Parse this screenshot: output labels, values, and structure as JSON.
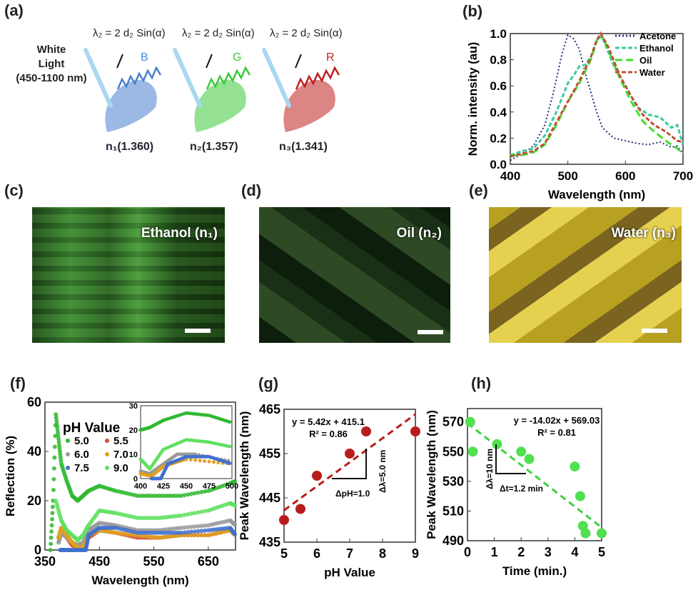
{
  "panel_labels": {
    "a": "(a)",
    "b": "(b)",
    "c": "(c)",
    "d": "(d)",
    "e": "(e)",
    "f": "(f)",
    "g": "(g)",
    "h": "(h)"
  },
  "panel_a": {
    "light_label": [
      "White",
      "Light",
      "(450-1100 nm)"
    ],
    "equation": "λ₂ = 2 d₂ Sin(α)",
    "wings": [
      {
        "color_letter": "B",
        "index": "n₁(1.360)",
        "color": "#4a7fd0"
      },
      {
        "color_letter": "G",
        "index": "n₂(1.357)",
        "color": "#3cc83c"
      },
      {
        "color_letter": "R",
        "index": "n₃(1.341)",
        "color": "#c02020"
      }
    ]
  },
  "photos": {
    "c": {
      "label": "Ethanol (n₁)"
    },
    "d": {
      "label": "Oil (n₂)"
    },
    "e": {
      "label": "Water (n₃)"
    }
  },
  "chart_data": [
    {
      "id": "b",
      "type": "line",
      "xlabel": "Wavelength (nm)",
      "ylabel": "Norm. intensity (au)",
      "xlim": [
        400,
        700
      ],
      "ylim": [
        0,
        1.0
      ],
      "xticks": [
        400,
        500,
        600,
        700
      ],
      "yticks": [
        "0.0",
        "0.2",
        "0.4",
        "0.6",
        "0.8",
        "1.0"
      ],
      "legend": "top-right",
      "series": [
        {
          "name": "Acetone",
          "color": "#2b2b7a",
          "style": "dotted",
          "x": [
            400,
            420,
            440,
            460,
            475,
            490,
            500,
            510,
            520,
            530,
            540,
            550,
            560,
            580,
            600,
            620,
            640,
            660,
            680,
            690,
            700
          ],
          "y": [
            0.03,
            0.08,
            0.14,
            0.3,
            0.55,
            0.85,
            0.99,
            0.96,
            0.88,
            0.7,
            0.55,
            0.4,
            0.28,
            0.2,
            0.18,
            0.16,
            0.15,
            0.17,
            0.13,
            0.14,
            0.08
          ]
        },
        {
          "name": "Ethanol",
          "color": "#3cc8a0",
          "style": "dashed",
          "x": [
            400,
            420,
            440,
            460,
            480,
            500,
            510,
            520,
            530,
            540,
            550,
            555,
            560,
            580,
            600,
            620,
            640,
            660,
            680,
            690,
            700
          ],
          "y": [
            0.07,
            0.1,
            0.12,
            0.22,
            0.4,
            0.62,
            0.68,
            0.75,
            0.76,
            0.82,
            0.95,
            0.97,
            0.97,
            0.75,
            0.6,
            0.44,
            0.38,
            0.36,
            0.28,
            0.3,
            0.15
          ]
        },
        {
          "name": "Oil",
          "color": "#44dd30",
          "style": "longdash",
          "x": [
            400,
            420,
            440,
            460,
            480,
            500,
            520,
            540,
            550,
            557,
            570,
            590,
            610,
            630,
            650,
            670,
            690,
            700
          ],
          "y": [
            0.07,
            0.07,
            0.09,
            0.15,
            0.3,
            0.48,
            0.62,
            0.8,
            0.94,
            1.0,
            0.88,
            0.66,
            0.48,
            0.33,
            0.25,
            0.18,
            0.12,
            0.08
          ]
        },
        {
          "name": "Water",
          "color": "#c05030",
          "style": "dashed",
          "x": [
            400,
            420,
            440,
            460,
            480,
            500,
            520,
            540,
            550,
            557,
            570,
            590,
            610,
            630,
            650,
            670,
            690,
            700
          ],
          "y": [
            0.06,
            0.08,
            0.1,
            0.16,
            0.32,
            0.48,
            0.64,
            0.82,
            0.95,
            1.0,
            0.9,
            0.68,
            0.52,
            0.38,
            0.3,
            0.25,
            0.18,
            0.17
          ]
        }
      ]
    },
    {
      "id": "f",
      "type": "scatter",
      "xlabel": "Wavelength (nm)",
      "ylabel": "Reflection (%)",
      "xlim": [
        350,
        700
      ],
      "ylim": [
        0,
        60
      ],
      "xticks": [
        350,
        450,
        550,
        650
      ],
      "yticks": [
        0,
        20,
        40,
        60
      ],
      "legend_title": "pH Value",
      "legend": "top-left",
      "series": [
        {
          "name": "5.0",
          "color": "#30b830",
          "x": [
            360,
            365,
            370,
            375,
            380,
            390,
            400,
            410,
            420,
            430,
            450,
            480,
            520,
            560,
            600,
            650,
            690,
            700
          ],
          "y": [
            0,
            20,
            55,
            45,
            35,
            28,
            22,
            20,
            22,
            24,
            26,
            24,
            22,
            22,
            22,
            24,
            27,
            28
          ]
        },
        {
          "name": "5.5",
          "color": "#d05030",
          "x": [
            375,
            380,
            390,
            400,
            410,
            420,
            430,
            450,
            480,
            520,
            560,
            600,
            650,
            690,
            700
          ],
          "y": [
            5,
            8,
            5,
            2,
            1,
            1,
            5,
            8,
            7,
            5,
            5,
            6,
            6,
            8,
            6
          ]
        },
        {
          "name": "6.0",
          "color": "#999999",
          "x": [
            375,
            380,
            390,
            400,
            410,
            420,
            430,
            450,
            480,
            520,
            560,
            600,
            650,
            690,
            700
          ],
          "y": [
            3,
            7,
            5,
            3,
            2,
            3,
            8,
            11,
            10,
            8,
            8,
            9,
            10,
            12,
            10
          ]
        },
        {
          "name": "7.0",
          "color": "#e0a020",
          "x": [
            375,
            380,
            390,
            400,
            410,
            420,
            430,
            450,
            480,
            520,
            560,
            600,
            650,
            690,
            700
          ],
          "y": [
            5,
            9,
            6,
            3,
            1,
            1,
            6,
            8,
            7,
            6,
            5,
            6,
            6,
            8,
            6
          ]
        },
        {
          "name": "7.5",
          "color": "#4070d0",
          "x": [
            378,
            385,
            400,
            415,
            425,
            430,
            450,
            480,
            520,
            560,
            600,
            650,
            690,
            700
          ],
          "y": [
            0,
            0,
            0,
            0,
            0,
            6,
            9,
            9,
            7,
            7,
            7,
            8,
            9,
            6
          ]
        },
        {
          "name": "9.0",
          "color": "#60e060",
          "x": [
            370,
            380,
            390,
            400,
            410,
            420,
            430,
            450,
            480,
            520,
            560,
            600,
            650,
            690,
            700
          ],
          "y": [
            20,
            12,
            8,
            6,
            4,
            6,
            10,
            16,
            15,
            13,
            13,
            14,
            16,
            19,
            18
          ]
        }
      ],
      "inset": {
        "xlim": [
          400,
          500
        ],
        "ylim": [
          0,
          30
        ],
        "xticks": [
          400,
          425,
          450,
          475,
          500
        ],
        "yticks": [
          0,
          10,
          20,
          30
        ]
      }
    },
    {
      "id": "g",
      "type": "scatter",
      "xlabel": "pH Value",
      "ylabel": "Peak Wavelength (nm)",
      "xlim": [
        5,
        9
      ],
      "ylim": [
        435,
        465
      ],
      "xticks": [
        5,
        6,
        7,
        8,
        9
      ],
      "yticks": [
        435,
        445,
        455,
        465
      ],
      "points": {
        "color": "#b81c1c",
        "x": [
          5,
          5.5,
          6,
          7,
          7.5,
          9
        ],
        "y": [
          440,
          442.5,
          450,
          455,
          460,
          460
        ]
      },
      "fit": {
        "slope": 5.42,
        "intercept": 415.1,
        "color": "#b81c1c"
      },
      "annotations": {
        "equation": "y = 5.42x + 415.1",
        "r2": "R² = 0.86",
        "dx": "ΔpH=1.0",
        "dy": "Δλ=5.0 nm"
      }
    },
    {
      "id": "h",
      "type": "scatter",
      "xlabel": "Time (min.)",
      "ylabel": "Peak Wavelength (nm)",
      "xlim": [
        0,
        5
      ],
      "ylim": [
        490,
        579
      ],
      "xticks": [
        0,
        1,
        2,
        3,
        4,
        5
      ],
      "yticks": [
        490,
        510,
        530,
        550,
        570
      ],
      "points": {
        "color": "#50e050",
        "x": [
          0.1,
          0.2,
          1.1,
          2.0,
          2.3,
          4.0,
          4.2,
          4.3,
          4.4,
          5.0
        ],
        "y": [
          570,
          550,
          555,
          550,
          545,
          540,
          520,
          500,
          495,
          495
        ]
      },
      "fit": {
        "slope": -14.02,
        "intercept": 569.03,
        "color": "#40d040"
      },
      "annotations": {
        "equation": "y = -14.02x + 569.03",
        "r2": "R² = 0.81",
        "dx": "Δt=1.2 min",
        "dy": "Δλ=10 nm"
      }
    }
  ]
}
